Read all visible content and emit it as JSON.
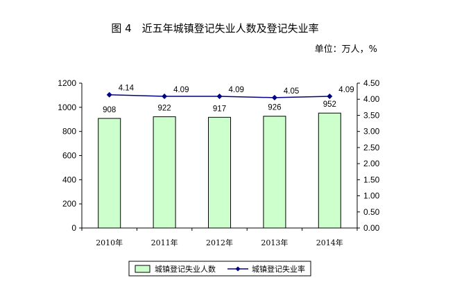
{
  "title": "图 4　近五年城镇登记失业人数及登记失业率",
  "unit": "单位：万人，%",
  "colors": {
    "bar_fill": "#ccffcc",
    "bar_stroke": "#000000",
    "line": "#000080"
  },
  "chart_data": {
    "type": "bar",
    "categories": [
      "2010年",
      "2011年",
      "2012年",
      "2013年",
      "2014年"
    ],
    "series": [
      {
        "name": "城镇登记失业人数",
        "type": "bar",
        "axis": "left",
        "values": [
          908,
          922,
          917,
          926,
          952
        ]
      },
      {
        "name": "城镇登记失业率",
        "type": "line",
        "axis": "right",
        "values": [
          4.14,
          4.09,
          4.09,
          4.05,
          4.09
        ]
      }
    ],
    "ylim_left": [
      0,
      1200
    ],
    "yticks_left": [
      "0",
      "200",
      "400",
      "600",
      "800",
      "1000",
      "1200"
    ],
    "ylim_right": [
      0,
      4.5
    ],
    "yticks_right": [
      "0.00",
      "0.50",
      "1.00",
      "1.50",
      "2.00",
      "2.50",
      "3.00",
      "3.50",
      "4.00",
      "4.50"
    ],
    "bar_labels": [
      "908",
      "922",
      "917",
      "926",
      "952"
    ],
    "line_labels": [
      "4.14",
      "4.09",
      "4.09",
      "4.05",
      "4.09"
    ],
    "grid": false,
    "legend_position": "bottom"
  }
}
